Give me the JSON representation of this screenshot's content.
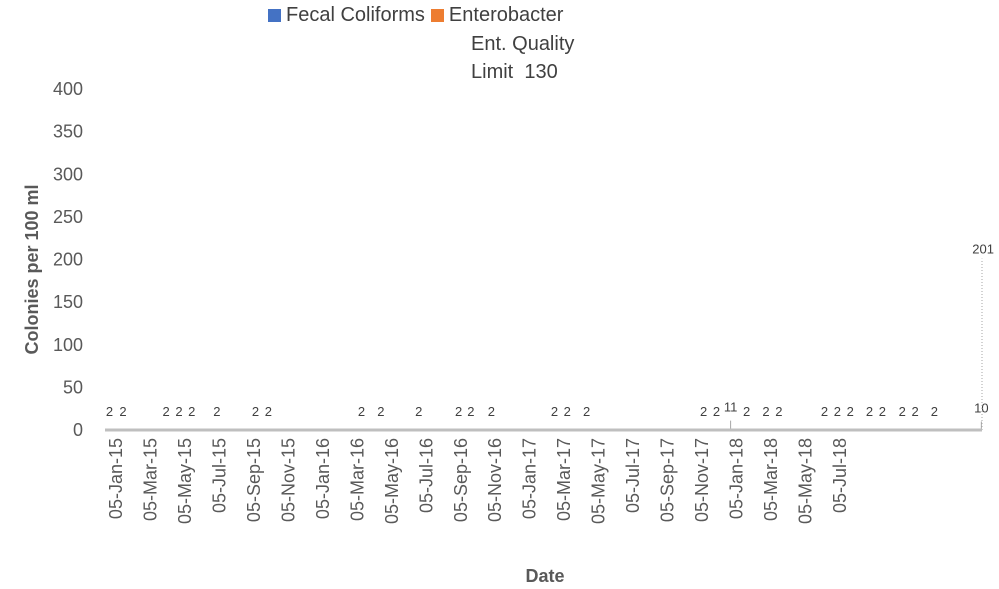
{
  "chart_data": {
    "type": "bar",
    "title": "",
    "xlabel": "Date",
    "ylabel": "Colonies per 100 ml",
    "ylim": [
      0,
      400
    ],
    "yticks": [
      "0",
      "50",
      "100",
      "150",
      "200",
      "250",
      "300",
      "350",
      "400"
    ],
    "x_tick_labels": [
      "05-Jan-15",
      "05-Mar-15",
      "05-May-15",
      "05-Jul-15",
      "05-Sep-15",
      "05-Nov-15",
      "05-Jan-16",
      "05-Mar-16",
      "05-May-16",
      "05-Jul-16",
      "05-Sep-16",
      "05-Nov-16",
      "05-Jan-17",
      "05-Mar-17",
      "05-May-17",
      "05-Jul-17",
      "05-Sep-17",
      "05-Nov-17",
      "05-Jan-18",
      "05-Mar-18",
      "05-May-18",
      "05-Jul-18"
    ],
    "xlim": [
      "2015-01-05",
      "2018-09-30"
    ],
    "grid": false,
    "legend_position": "top",
    "series": [
      {
        "name": "Fecal Coliforms",
        "color": "#4472C4"
      },
      {
        "name": "Enterobacter",
        "color": "#ED7D31"
      }
    ],
    "data_labels": [
      {
        "date": "2015-01-12",
        "value": 2,
        "label": "2"
      },
      {
        "date": "2015-02-02",
        "value": 2,
        "label": "2"
      },
      {
        "date": "2015-04-10",
        "value": 2,
        "label": "2"
      },
      {
        "date": "2015-04-30",
        "value": 2,
        "label": "2"
      },
      {
        "date": "2015-05-20",
        "value": 2,
        "label": "2"
      },
      {
        "date": "2015-06-28",
        "value": 2,
        "label": "2"
      },
      {
        "date": "2015-08-27",
        "value": 2,
        "label": "2"
      },
      {
        "date": "2015-09-16",
        "value": 2,
        "label": "2"
      },
      {
        "date": "2016-02-08",
        "value": 2,
        "label": "2"
      },
      {
        "date": "2016-03-09",
        "value": 2,
        "label": "2"
      },
      {
        "date": "2016-05-07",
        "value": 2,
        "label": "2"
      },
      {
        "date": "2016-07-08",
        "value": 2,
        "label": "2"
      },
      {
        "date": "2016-07-27",
        "value": 2,
        "label": "2"
      },
      {
        "date": "2016-08-28",
        "value": 2,
        "label": "2"
      },
      {
        "date": "2016-12-04",
        "value": 2,
        "label": "2"
      },
      {
        "date": "2016-12-24",
        "value": 2,
        "label": "2"
      },
      {
        "date": "2017-01-23",
        "value": 2,
        "label": "2"
      },
      {
        "date": "2017-07-24",
        "value": 2,
        "label": "2"
      },
      {
        "date": "2017-08-13",
        "value": 2,
        "label": "2"
      },
      {
        "date": "2017-09-04",
        "value": 11,
        "label": "11"
      },
      {
        "date": "2017-09-29",
        "value": 2,
        "label": "2"
      },
      {
        "date": "2017-10-29",
        "value": 2,
        "label": "2"
      },
      {
        "date": "2017-11-18",
        "value": 2,
        "label": "2"
      },
      {
        "date": "2018-01-28",
        "value": 2,
        "label": "2"
      },
      {
        "date": "2018-02-17",
        "value": 2,
        "label": "2"
      },
      {
        "date": "2018-03-09",
        "value": 2,
        "label": "2"
      },
      {
        "date": "2018-04-08",
        "value": 2,
        "label": "2"
      },
      {
        "date": "2018-04-28",
        "value": 2,
        "label": "2"
      },
      {
        "date": "2018-05-29",
        "value": 2,
        "label": "2"
      },
      {
        "date": "2018-06-18",
        "value": 2,
        "label": "2"
      },
      {
        "date": "2018-07-18",
        "value": 2,
        "label": "2"
      },
      {
        "date": "2018-09-29",
        "value": 10,
        "label": "10"
      },
      {
        "date": "2018-09-30",
        "value": 201,
        "label": "201"
      }
    ],
    "annotation": {
      "line1": "Ent. Quality",
      "line2": "Limit  130",
      "value": 130
    }
  }
}
